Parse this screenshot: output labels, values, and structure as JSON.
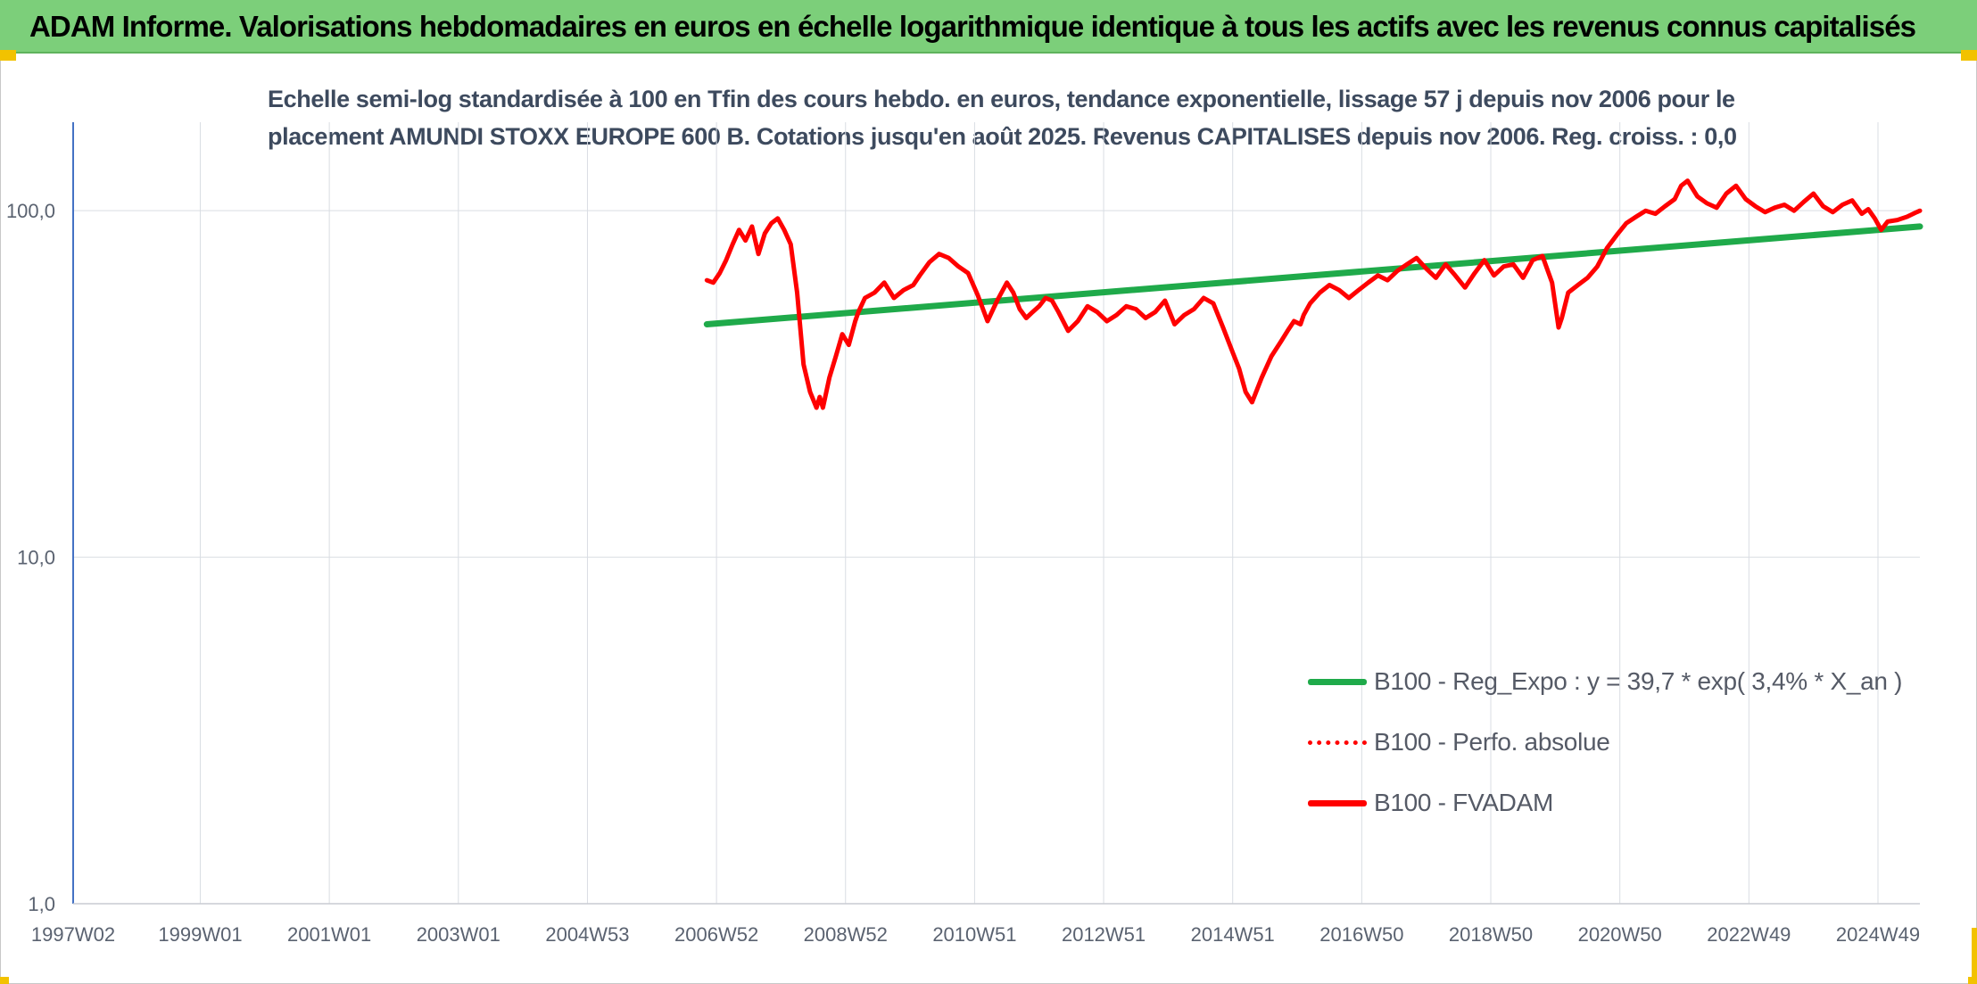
{
  "header": {
    "title": "ADAM Informe. Valorisations hebdomadaires en euros en échelle logarithmique identique à tous les actifs avec les revenus connus capitalisés"
  },
  "chart_data": {
    "type": "line",
    "title_lines": [
      "Echelle semi-log standardisée à 100 en Tfin des cours hebdo. en euros, tendance exponentielle, lissage 57 j depuis nov 2006 pour le",
      "placement AMUNDI STOXX EUROPE 600 B. Cotations jusqu'en août 2025. Revenus CAPITALISES depuis nov 2006. Reg. croiss. : 0,0"
    ],
    "y_scale": "log",
    "ylim": [
      1,
      180
    ],
    "y_ticks": [
      {
        "value": 1,
        "label": "1,0"
      },
      {
        "value": 10,
        "label": "10,0"
      },
      {
        "value": 100,
        "label": "100,0"
      }
    ],
    "x_range": [
      1997.03,
      2025.65
    ],
    "x_ticks": [
      {
        "value": 1997.03,
        "label": "1997W02"
      },
      {
        "value": 1999.0,
        "label": "1999W01"
      },
      {
        "value": 2001.0,
        "label": "2001W01"
      },
      {
        "value": 2003.0,
        "label": "2003W01"
      },
      {
        "value": 2005.0,
        "label": "2004W53"
      },
      {
        "value": 2007.0,
        "label": "2006W52"
      },
      {
        "value": 2009.0,
        "label": "2008W52"
      },
      {
        "value": 2011.0,
        "label": "2010W51"
      },
      {
        "value": 2013.0,
        "label": "2012W51"
      },
      {
        "value": 2015.0,
        "label": "2014W51"
      },
      {
        "value": 2017.0,
        "label": "2016W50"
      },
      {
        "value": 2019.0,
        "label": "2018W50"
      },
      {
        "value": 2021.0,
        "label": "2020W50"
      },
      {
        "value": 2023.0,
        "label": "2022W49"
      },
      {
        "value": 2025.0,
        "label": "2024W49"
      }
    ],
    "grid": true,
    "legend_position": "bottom-right",
    "series": [
      {
        "name": "B100 - Reg_Expo : y = 39,7 * exp( 3,4% *  X_an )",
        "color": "#1faa4a",
        "style": "solid",
        "x": [
          2006.85,
          2025.65
        ],
        "y": [
          47,
          90
        ]
      },
      {
        "name": "B100 - Perfo. absolue",
        "color": "#ff0000",
        "style": "dotted",
        "x": [],
        "y": []
      },
      {
        "name": "B100 - FVADAM",
        "color": "#ff0000",
        "style": "solid",
        "x": [
          2006.85,
          2006.95,
          2007.05,
          2007.15,
          2007.25,
          2007.35,
          2007.45,
          2007.55,
          2007.65,
          2007.75,
          2007.85,
          2007.95,
          2008.05,
          2008.15,
          2008.25,
          2008.35,
          2008.45,
          2008.55,
          2008.6,
          2008.65,
          2008.75,
          2008.85,
          2008.95,
          2009.05,
          2009.15,
          2009.2,
          2009.3,
          2009.45,
          2009.6,
          2009.75,
          2009.9,
          2010.05,
          2010.15,
          2010.3,
          2010.45,
          2010.6,
          2010.75,
          2010.9,
          2011.05,
          2011.2,
          2011.35,
          2011.5,
          2011.6,
          2011.7,
          2011.8,
          2011.9,
          2012.0,
          2012.1,
          2012.2,
          2012.3,
          2012.45,
          2012.6,
          2012.75,
          2012.9,
          2013.05,
          2013.2,
          2013.35,
          2013.5,
          2013.65,
          2013.8,
          2013.95,
          2014.1,
          2014.25,
          2014.4,
          2014.55,
          2014.7,
          2014.85,
          2015.0,
          2015.1,
          2015.2,
          2015.3,
          2015.45,
          2015.6,
          2015.75,
          2015.85,
          2015.95,
          2016.05,
          2016.1,
          2016.2,
          2016.35,
          2016.5,
          2016.65,
          2016.8,
          2016.95,
          2017.1,
          2017.25,
          2017.4,
          2017.55,
          2017.7,
          2017.85,
          2018.0,
          2018.15,
          2018.3,
          2018.45,
          2018.6,
          2018.75,
          2018.9,
          2019.05,
          2019.2,
          2019.35,
          2019.5,
          2019.65,
          2019.8,
          2019.95,
          2020.05,
          2020.1,
          2020.2,
          2020.35,
          2020.5,
          2020.65,
          2020.8,
          2020.95,
          2021.1,
          2021.25,
          2021.4,
          2021.55,
          2021.7,
          2021.85,
          2021.95,
          2022.05,
          2022.2,
          2022.35,
          2022.5,
          2022.65,
          2022.8,
          2022.95,
          2023.1,
          2023.25,
          2023.4,
          2023.55,
          2023.7,
          2023.85,
          2024.0,
          2024.15,
          2024.3,
          2024.45,
          2024.6,
          2024.75,
          2024.85,
          2024.95,
          2025.05,
          2025.15,
          2025.3,
          2025.45,
          2025.6,
          2025.65
        ],
        "y": [
          63,
          62,
          66,
          72,
          80,
          88,
          82,
          90,
          75,
          86,
          92,
          95,
          88,
          80,
          58,
          36,
          30,
          27,
          29,
          27,
          33,
          38,
          44,
          41,
          48,
          51,
          56,
          58,
          62,
          56,
          59,
          61,
          65,
          71,
          75,
          73,
          69,
          66,
          57,
          48,
          55,
          62,
          58,
          52,
          49,
          51,
          53,
          56,
          55,
          51,
          45,
          48,
          53,
          51,
          48,
          50,
          53,
          52,
          49,
          51,
          55,
          47,
          50,
          52,
          56,
          54,
          46,
          39,
          35,
          30,
          28,
          33,
          38,
          42,
          45,
          48,
          47,
          50,
          54,
          58,
          61,
          59,
          56,
          59,
          62,
          65,
          63,
          67,
          70,
          73,
          68,
          64,
          70,
          65,
          60,
          66,
          72,
          65,
          69,
          70,
          64,
          72,
          74,
          62,
          46,
          49,
          58,
          61,
          64,
          69,
          78,
          85,
          92,
          96,
          100,
          98,
          103,
          108,
          118,
          122,
          110,
          105,
          102,
          112,
          118,
          108,
          103,
          99,
          102,
          104,
          100,
          106,
          112,
          103,
          99,
          104,
          107,
          98,
          101,
          95,
          88,
          93,
          94,
          96,
          99,
          100
        ]
      }
    ]
  }
}
